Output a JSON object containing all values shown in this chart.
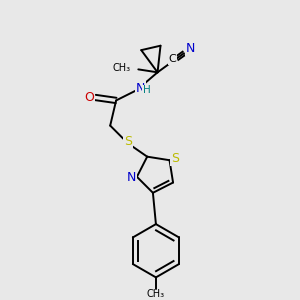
{
  "background_color": "#e8e8e8",
  "atom_colors": {
    "C": "#000000",
    "N": "#0000cc",
    "O": "#cc0000",
    "S": "#bbbb00",
    "H": "#008080"
  },
  "figsize": [
    3.0,
    3.0
  ],
  "dpi": 100
}
